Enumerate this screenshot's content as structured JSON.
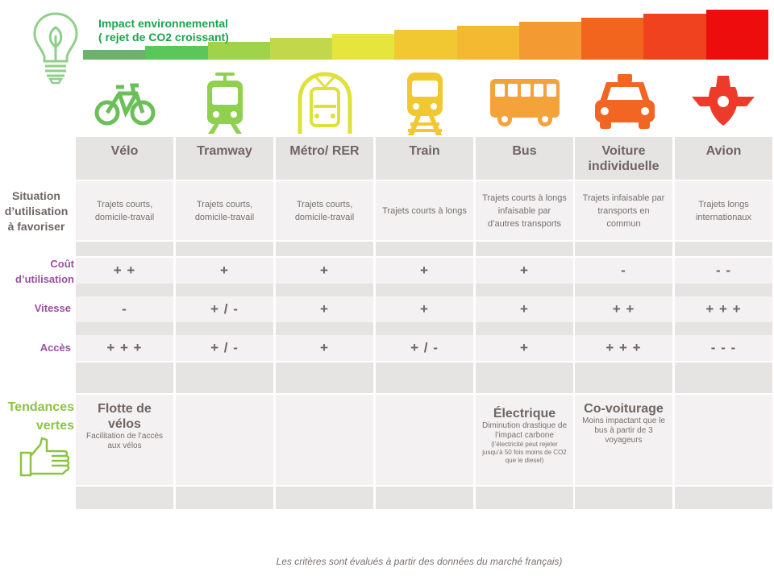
{
  "header": {
    "title_line1": "Impact environnemental",
    "title_line2": "( rejet de CO2 croissant)"
  },
  "gradient_colors": [
    "#6bb36c",
    "#5bc65a",
    "#9fd34b",
    "#c2d74a",
    "#e6e53b",
    "#f2c832",
    "#f4b930",
    "#f49a32",
    "#f2651e",
    "#f0421e",
    "#ee0d0d"
  ],
  "modes": [
    {
      "name": "Vélo",
      "icon": "bicycle-icon",
      "color": "#6bbf59"
    },
    {
      "name": "Tramway",
      "icon": "tram-icon",
      "color": "#8fd14f"
    },
    {
      "name": "Métro/ RER",
      "icon": "metro-icon",
      "color": "#e0e03a"
    },
    {
      "name": "Train",
      "icon": "train-icon",
      "color": "#f2c832"
    },
    {
      "name": "Bus",
      "icon": "bus-icon",
      "color": "#f4a23a"
    },
    {
      "name": "Voiture individuelle",
      "icon": "car-icon",
      "color": "#f26522"
    },
    {
      "name": "Avion",
      "icon": "plane-icon",
      "color": "#ee3a2a"
    }
  ],
  "row_labels": {
    "situation": "Situation d’utilisation à favoriser",
    "cout_line1": "Coût",
    "cout_line2": "d’utilisation",
    "vitesse": "Vitesse",
    "acces": "Accès",
    "tendances_line1": "Tendances",
    "tendances_line2": "vertes"
  },
  "situation": [
    "Trajets courts, domicile-travail",
    "Trajets courts, domicile-travail",
    "Trajets courts, domicile-travail",
    "Trajets courts à longs",
    "Trajets courts à longs infaisable par d’autres transports",
    "Trajets infaisable par transports en commun",
    "Trajets longs internationaux"
  ],
  "cout": [
    "+ +",
    "+",
    "+",
    "+",
    "+",
    "-",
    "- -"
  ],
  "vitesse": [
    "-",
    "+ / -",
    "+",
    "+",
    "+",
    "+ +",
    "+ + +"
  ],
  "acces": [
    "+ + +",
    "+ / -",
    "+",
    "+ / -",
    "+",
    "+ + +",
    "- - -"
  ],
  "tendances": {
    "velo_title": "Flotte de vélos",
    "velo_desc": "Facilitation de l’accès aux vélos",
    "bus_title": "Électrique",
    "bus_desc": "Diminution drastique de l’impact carbone",
    "bus_note": "(l’électricité peut rejeter jusqu’à 50 fois moins de CO2 que le diesel)",
    "voiture_title": "Co-voiturage",
    "voiture_desc": "Moins impactant que le bus à partir de 3 voyageurs"
  },
  "footer": "Les critères sont évalués à partir des données du marché français)"
}
